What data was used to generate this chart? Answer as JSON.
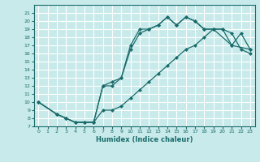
{
  "xlabel": "Humidex (Indice chaleur)",
  "bg_color": "#c8eaea",
  "grid_color": "#ffffff",
  "line_color": "#1a6b6b",
  "xlim": [
    -0.5,
    23.5
  ],
  "ylim": [
    7,
    22
  ],
  "xticks": [
    0,
    1,
    2,
    3,
    4,
    5,
    6,
    7,
    8,
    9,
    10,
    11,
    12,
    13,
    14,
    15,
    16,
    17,
    18,
    19,
    20,
    21,
    22,
    23
  ],
  "yticks": [
    7,
    8,
    9,
    10,
    11,
    12,
    13,
    14,
    15,
    16,
    17,
    18,
    19,
    20,
    21
  ],
  "line1_x": [
    0,
    2,
    3,
    4,
    5,
    6,
    7,
    8,
    9,
    10,
    11,
    12,
    13,
    14,
    15,
    16,
    17,
    18,
    19,
    20,
    21,
    22,
    23
  ],
  "line1_y": [
    10,
    8.5,
    8,
    7.5,
    7.5,
    7.5,
    12,
    12,
    13,
    17,
    19,
    19,
    19.5,
    20.5,
    19.5,
    20.5,
    20,
    19,
    19,
    19,
    17,
    18.5,
    16.5
  ],
  "line2_x": [
    0,
    2,
    3,
    4,
    5,
    6,
    7,
    8,
    9,
    10,
    11,
    12,
    13,
    14,
    15,
    16,
    17,
    18,
    19,
    21,
    23
  ],
  "line2_y": [
    10,
    8.5,
    8,
    7.5,
    7.5,
    7.5,
    12,
    12.5,
    13,
    16.5,
    18.5,
    19,
    19.5,
    20.5,
    19.5,
    20.5,
    20,
    19,
    19,
    17,
    16.5
  ],
  "line3_x": [
    0,
    2,
    3,
    4,
    5,
    6,
    7,
    8,
    9,
    10,
    11,
    12,
    13,
    14,
    15,
    16,
    17,
    18,
    19,
    20,
    21,
    22,
    23
  ],
  "line3_y": [
    10,
    8.5,
    8,
    7.5,
    7.5,
    7.5,
    9,
    9,
    9.5,
    10.5,
    11.5,
    12.5,
    13.5,
    14.5,
    15.5,
    16.5,
    17,
    18,
    19,
    19,
    18.5,
    16.5,
    16
  ]
}
